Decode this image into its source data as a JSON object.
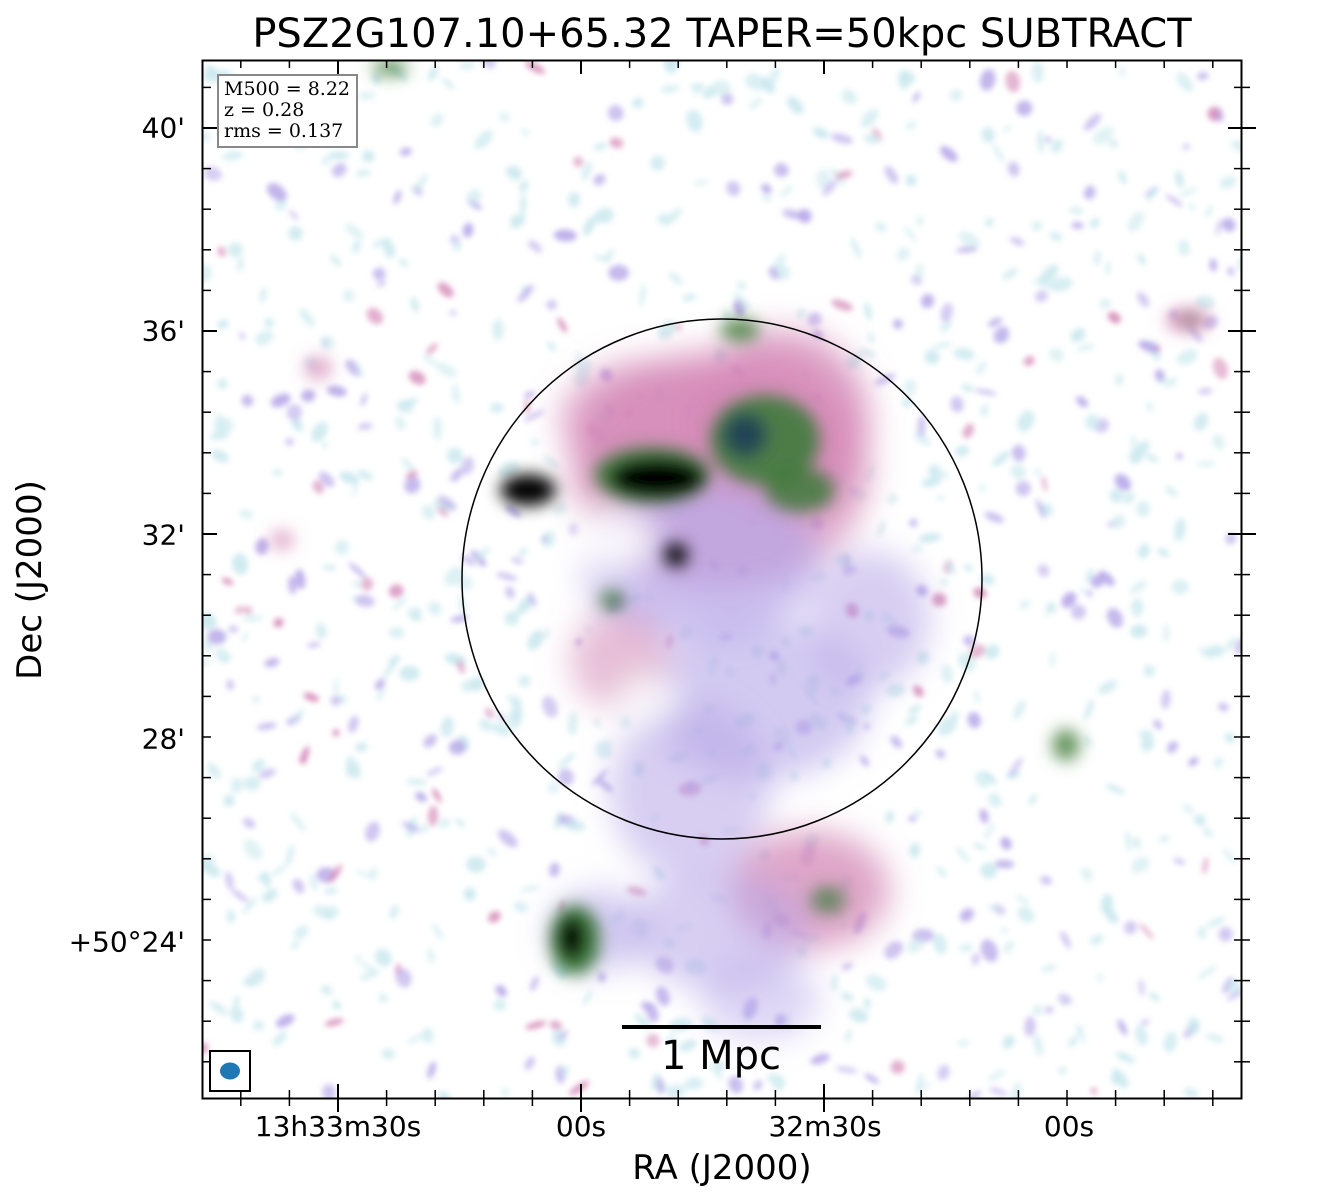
{
  "title": "PSZ2G107.10+65.32 TAPER=50kpc SUBTRACT",
  "axes": {
    "xlabel": "RA (J2000)",
    "ylabel": "Dec (J2000)",
    "x_ticks": [
      "13h33m30s",
      "00s",
      "32m30s",
      "00s"
    ],
    "y_ticks": [
      "40'",
      "36'",
      "32'",
      "28'",
      "+50°24'"
    ]
  },
  "info_box": {
    "mass": "M500 = 8.22",
    "redshift": "z = 0.28",
    "rms": "rms = 0.137"
  },
  "scale_bar": {
    "label": "1 Mpc"
  },
  "colors": {
    "colormap": [
      "#ffffff",
      "#c9e8ee",
      "#b6a6e8",
      "#d488b6",
      "#3d7a3a",
      "#1e4055",
      "#000000"
    ],
    "beam": "#1f77b4",
    "frame": "#000000"
  }
}
